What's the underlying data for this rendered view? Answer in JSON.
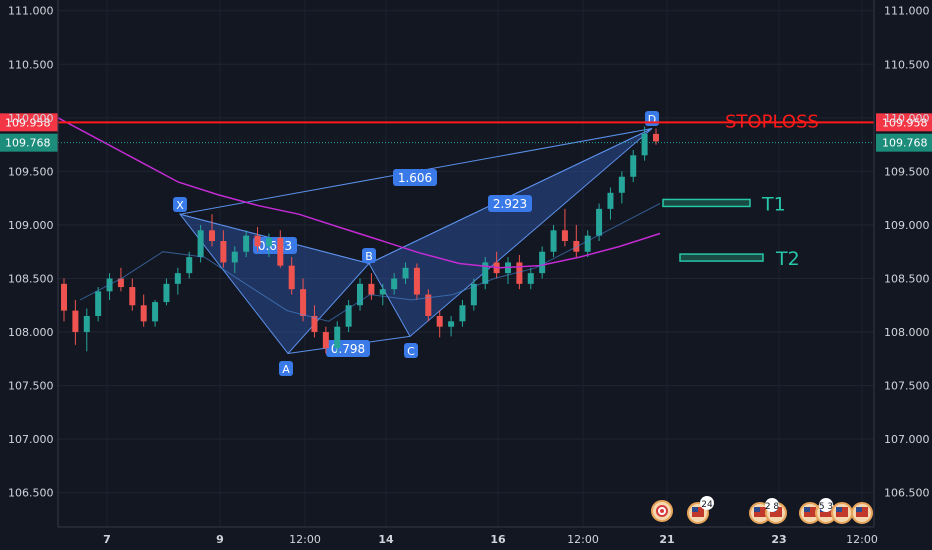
{
  "chart_data": {
    "type": "candlestick",
    "price_scale": {
      "ylim": [
        106.18,
        111.1
      ],
      "ticks": [
        "111.000",
        "110.500",
        "110.000",
        "109.500",
        "109.000",
        "108.500",
        "108.000",
        "107.500",
        "107.000",
        "106.500"
      ],
      "tick_values": [
        111.0,
        110.5,
        110.0,
        109.5,
        109.0,
        108.5,
        108.0,
        107.5,
        107.0,
        106.5
      ]
    },
    "time_axis": {
      "labels": [
        {
          "text": "7",
          "bold": true
        },
        {
          "text": "9",
          "bold": true
        },
        {
          "text": "12:00",
          "bold": false
        },
        {
          "text": "14",
          "bold": true
        },
        {
          "text": "16",
          "bold": true
        },
        {
          "text": "12:00",
          "bold": false
        },
        {
          "text": "21",
          "bold": true
        },
        {
          "text": "23",
          "bold": true
        },
        {
          "text": "12:00",
          "bold": false
        }
      ]
    },
    "price_levels": [
      {
        "name": "stoploss",
        "value": 109.958,
        "label": "109.958",
        "text": "STOPLOSS",
        "color": "#ff1a1a"
      },
      {
        "name": "last-price",
        "value": 109.768,
        "label": "109.768",
        "color": "#26a69a"
      }
    ],
    "targets": [
      {
        "text": "T1",
        "value": 109.21
      },
      {
        "text": "T2",
        "value": 108.7
      }
    ],
    "pattern": {
      "points": [
        {
          "name": "X",
          "value": 109.1
        },
        {
          "name": "A",
          "value": 107.8
        },
        {
          "name": "B",
          "value": 108.64
        },
        {
          "name": "C",
          "value": 107.96
        },
        {
          "name": "D",
          "value": 109.9
        }
      ],
      "ratios": [
        {
          "text": "1.606",
          "between": "X-D"
        },
        {
          "text": "0.633",
          "between": "X-B"
        },
        {
          "text": "0.798",
          "between": "A-C"
        },
        {
          "text": "2.923",
          "between": "B-D"
        }
      ],
      "fill_color": "#3a6ad6"
    },
    "moving_averages": [
      {
        "name": "ma-long",
        "color": "#c32bd3",
        "values": [
          110.0,
          109.8,
          109.6,
          109.4,
          109.28,
          109.18,
          109.1,
          108.98,
          108.86,
          108.74,
          108.64,
          108.6,
          108.62,
          108.7,
          108.8,
          108.92
        ]
      },
      {
        "name": "ma-short",
        "color": "#4a8bd8",
        "values": [
          108.3,
          108.5,
          108.75,
          108.7,
          108.45,
          108.2,
          108.1,
          108.35,
          108.3,
          108.35,
          108.5,
          108.6,
          108.8,
          109.0,
          109.2
        ]
      }
    ],
    "candles": [
      [
        108.45,
        108.5,
        108.1,
        108.2
      ],
      [
        108.2,
        108.3,
        107.88,
        108.0
      ],
      [
        108.0,
        108.22,
        107.82,
        108.15
      ],
      [
        108.15,
        108.42,
        108.1,
        108.38
      ],
      [
        108.38,
        108.55,
        108.3,
        108.5
      ],
      [
        108.5,
        108.6,
        108.38,
        108.42
      ],
      [
        108.42,
        108.5,
        108.2,
        108.25
      ],
      [
        108.25,
        108.35,
        108.05,
        108.1
      ],
      [
        108.1,
        108.3,
        108.05,
        108.28
      ],
      [
        108.28,
        108.5,
        108.25,
        108.45
      ],
      [
        108.45,
        108.6,
        108.35,
        108.55
      ],
      [
        108.55,
        108.75,
        108.5,
        108.7
      ],
      [
        108.7,
        109.0,
        108.65,
        108.95
      ],
      [
        108.95,
        109.1,
        108.8,
        108.85
      ],
      [
        108.85,
        108.95,
        108.6,
        108.65
      ],
      [
        108.65,
        108.8,
        108.55,
        108.75
      ],
      [
        108.75,
        108.95,
        108.7,
        108.9
      ],
      [
        108.9,
        108.98,
        108.75,
        108.8
      ],
      [
        108.8,
        108.92,
        108.7,
        108.88
      ],
      [
        108.88,
        108.95,
        108.6,
        108.62
      ],
      [
        108.62,
        108.7,
        108.35,
        108.4
      ],
      [
        108.4,
        108.5,
        108.1,
        108.15
      ],
      [
        108.15,
        108.25,
        107.95,
        108.0
      ],
      [
        108.0,
        108.05,
        107.8,
        107.85
      ],
      [
        107.85,
        108.1,
        107.8,
        108.05
      ],
      [
        108.05,
        108.3,
        108.0,
        108.25
      ],
      [
        108.25,
        108.5,
        108.2,
        108.45
      ],
      [
        108.45,
        108.55,
        108.3,
        108.35
      ],
      [
        108.35,
        108.45,
        108.25,
        108.4
      ],
      [
        108.4,
        108.55,
        108.35,
        108.5
      ],
      [
        108.5,
        108.65,
        108.45,
        108.6
      ],
      [
        108.6,
        108.64,
        108.3,
        108.35
      ],
      [
        108.35,
        108.4,
        108.1,
        108.15
      ],
      [
        108.15,
        108.2,
        107.95,
        108.05
      ],
      [
        108.05,
        108.15,
        107.96,
        108.1
      ],
      [
        108.1,
        108.3,
        108.05,
        108.25
      ],
      [
        108.25,
        108.5,
        108.2,
        108.45
      ],
      [
        108.45,
        108.7,
        108.4,
        108.65
      ],
      [
        108.65,
        108.75,
        108.5,
        108.55
      ],
      [
        108.55,
        108.7,
        108.45,
        108.65
      ],
      [
        108.65,
        108.72,
        108.4,
        108.45
      ],
      [
        108.45,
        108.6,
        108.4,
        108.55
      ],
      [
        108.55,
        108.8,
        108.5,
        108.75
      ],
      [
        108.75,
        109.0,
        108.7,
        108.95
      ],
      [
        108.95,
        109.15,
        108.8,
        108.85
      ],
      [
        108.85,
        109.0,
        108.7,
        108.75
      ],
      [
        108.75,
        108.95,
        108.7,
        108.9
      ],
      [
        108.9,
        109.2,
        108.85,
        109.15
      ],
      [
        109.15,
        109.35,
        109.05,
        109.3
      ],
      [
        109.3,
        109.5,
        109.2,
        109.45
      ],
      [
        109.45,
        109.7,
        109.4,
        109.65
      ],
      [
        109.65,
        109.92,
        109.6,
        109.85
      ],
      [
        109.85,
        109.9,
        109.75,
        109.78
      ]
    ]
  },
  "events": [
    {
      "name": "event-target-icon",
      "badge": ""
    },
    {
      "name": "event-flag-us",
      "badge": "24"
    },
    {
      "name": "event-flag-group-1",
      "badge": "2 8"
    },
    {
      "name": "event-flag-group-2",
      "badge": "5 3"
    }
  ]
}
